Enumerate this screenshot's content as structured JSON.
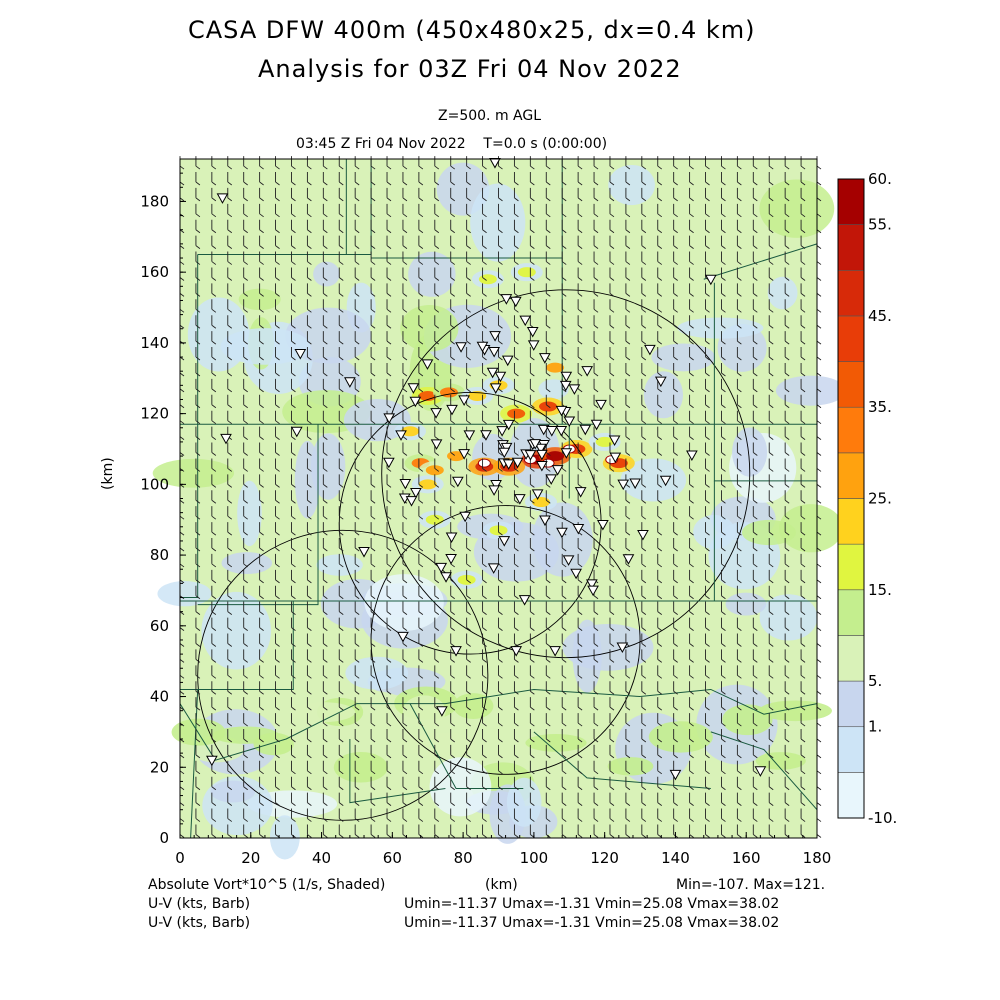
{
  "header": {
    "title_line1": "CASA DFW 400m (450x480x25, dx=0.4 km)",
    "title_line2": "Analysis for 03Z Fri 04 Nov 2022",
    "level": "Z=500. m AGL",
    "time": "03:45 Z Fri 04 Nov 2022    T=0.0 s (0:00:00)"
  },
  "axes": {
    "xlabel": "(km)",
    "ylabel": "(km)",
    "x_ticks": [
      "0",
      "20",
      "40",
      "60",
      "80",
      "100",
      "120",
      "140",
      "160",
      "180"
    ],
    "y_ticks": [
      "0",
      "20",
      "40",
      "60",
      "80",
      "100",
      "120",
      "140",
      "160",
      "180"
    ],
    "xlim": [
      0,
      180
    ],
    "ylim": [
      0,
      192
    ]
  },
  "colorbar": {
    "labels": [
      "60.",
      "55.",
      "45.",
      "35.",
      "25.",
      "15.",
      "5.",
      "1.",
      "-10."
    ],
    "colors": [
      "#e8f6fc",
      "#cde4f6",
      "#c8d6ee",
      "#d9f2b8",
      "#c4ee8e",
      "#e0f540",
      "#ffd21e",
      "#ffa20f",
      "#ff7b0c",
      "#f25a05",
      "#e83d08",
      "#d72a09",
      "#c21608",
      "#a50000"
    ]
  },
  "footer": {
    "field1": "Absolute Vort*10^5 (1/s, Shaded)",
    "xunit": "(km)",
    "minmax": "Min=-107. Max=121.",
    "field2": "U-V (kts, Barb)",
    "stats2": "Umin=-11.37 Umax=-1.31 Vmin=25.08 Vmax=38.02",
    "field3": "U-V (kts, Barb)",
    "stats3": "Umin=-11.37 Umax=-1.31 Vmin=25.08 Vmax=38.02"
  },
  "map_data": {
    "radars": [
      {
        "x": 109,
        "y": 103,
        "r": 52
      },
      {
        "x": 82,
        "y": 89,
        "r": 37
      },
      {
        "x": 46,
        "y": 46,
        "r": 41
      },
      {
        "x": 92,
        "y": 56,
        "r": 38
      }
    ],
    "vorticity_cells": [
      {
        "x": 101,
        "y": 107,
        "v": 60
      },
      {
        "x": 106,
        "y": 108,
        "v": 55
      },
      {
        "x": 86,
        "y": 105,
        "v": 45
      },
      {
        "x": 93,
        "y": 105,
        "v": 45
      },
      {
        "x": 124,
        "y": 106,
        "v": 40
      },
      {
        "x": 112,
        "y": 110,
        "v": 40
      },
      {
        "x": 104,
        "y": 122,
        "v": 40
      },
      {
        "x": 95,
        "y": 120,
        "v": 35
      },
      {
        "x": 70,
        "y": 125,
        "v": 35
      },
      {
        "x": 76,
        "y": 126,
        "v": 30
      },
      {
        "x": 68,
        "y": 106,
        "v": 30
      },
      {
        "x": 72,
        "y": 104,
        "v": 25
      },
      {
        "x": 78,
        "y": 108,
        "v": 25
      },
      {
        "x": 106,
        "y": 133,
        "v": 25
      },
      {
        "x": 90,
        "y": 128,
        "v": 20
      },
      {
        "x": 84,
        "y": 125,
        "v": 20
      },
      {
        "x": 98,
        "y": 160,
        "v": 15
      },
      {
        "x": 87,
        "y": 158,
        "v": 15
      },
      {
        "x": 70,
        "y": 100,
        "v": 20
      },
      {
        "x": 90,
        "y": 87,
        "v": 15
      },
      {
        "x": 72,
        "y": 90,
        "v": 15
      },
      {
        "x": 102,
        "y": 95,
        "v": 20
      },
      {
        "x": 81,
        "y": 73,
        "v": 15
      },
      {
        "x": 65,
        "y": 115,
        "v": 20
      },
      {
        "x": 120,
        "y": 112,
        "v": 15
      }
    ],
    "hilite_cells": [
      {
        "x": 99,
        "y": 107
      },
      {
        "x": 104,
        "y": 106
      },
      {
        "x": 122,
        "y": 107
      },
      {
        "x": 86,
        "y": 106
      },
      {
        "x": 110,
        "y": 110
      }
    ]
  }
}
